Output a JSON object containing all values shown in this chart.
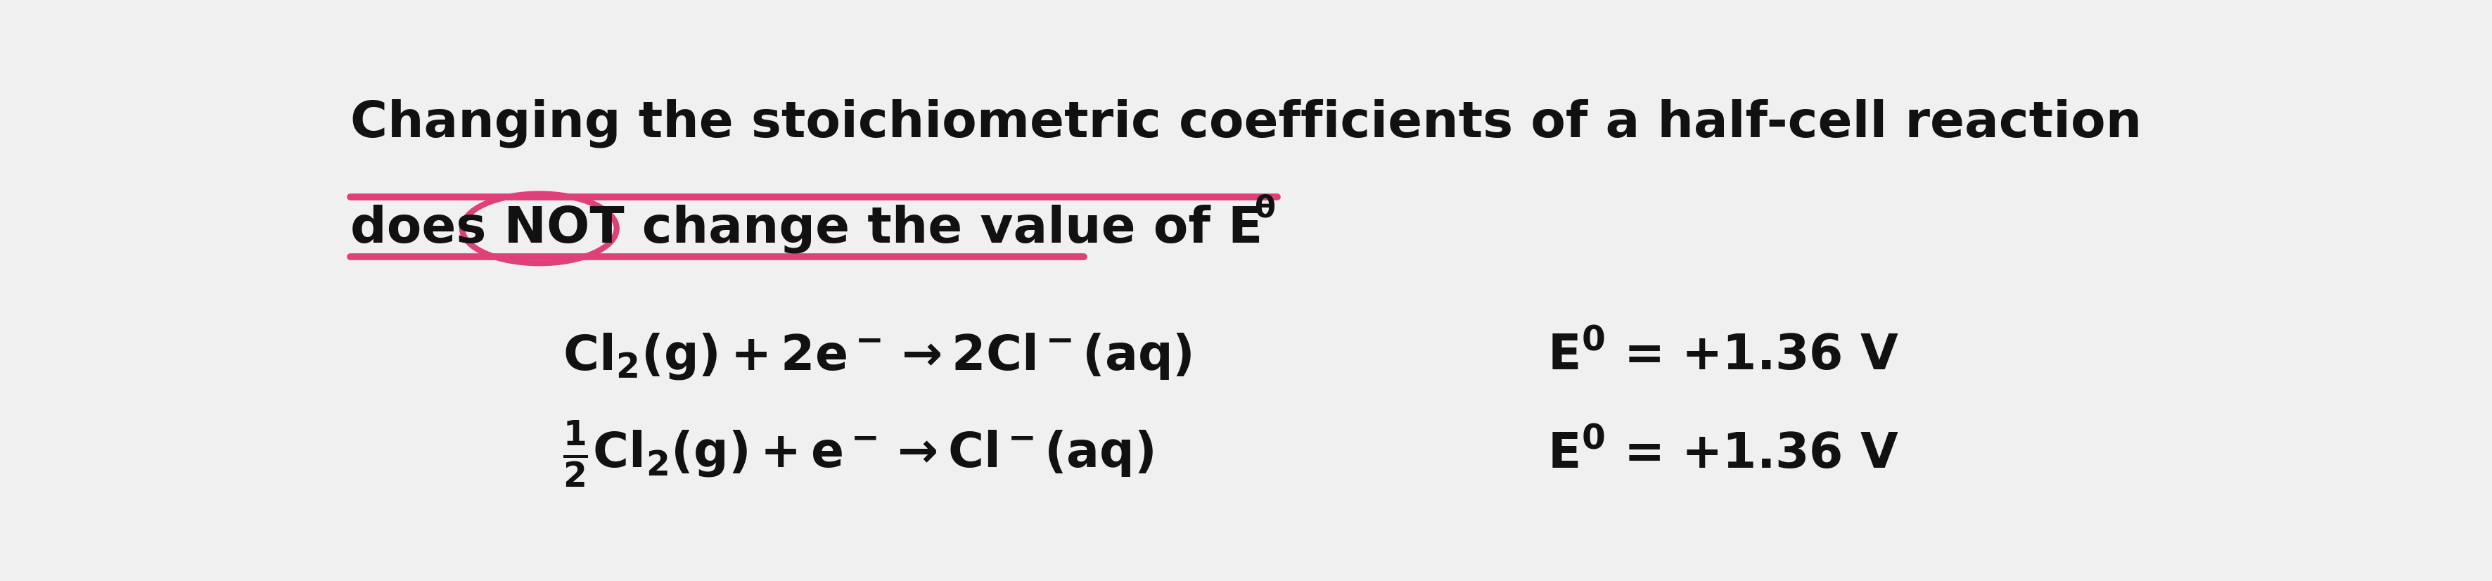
{
  "background_color": "#f0f0f0",
  "text_color": "#111111",
  "highlight_color": "#e0407a",
  "font_size_title": 52,
  "font_size_reaction": 50,
  "font_size_energy": 50,
  "title_line1": "Changing the stoichiometric coefficients of a half-cell reaction",
  "title_line2_pre": "does ",
  "title_line2_not": "NOT",
  "title_line2_post": " change the value of E",
  "title_line2_sup": "θ",
  "rxn1_text": "$\\mathregular{Cl_2(g) + 2e^- \\rightarrow 2Cl^-(aq)}$",
  "rxn2_text": "$\\mathregular{\\frac{1}{2}Cl_2(g) + e^- \\rightarrow Cl^-(aq)}$",
  "energy_text": "E⁰ = +1.36 V"
}
